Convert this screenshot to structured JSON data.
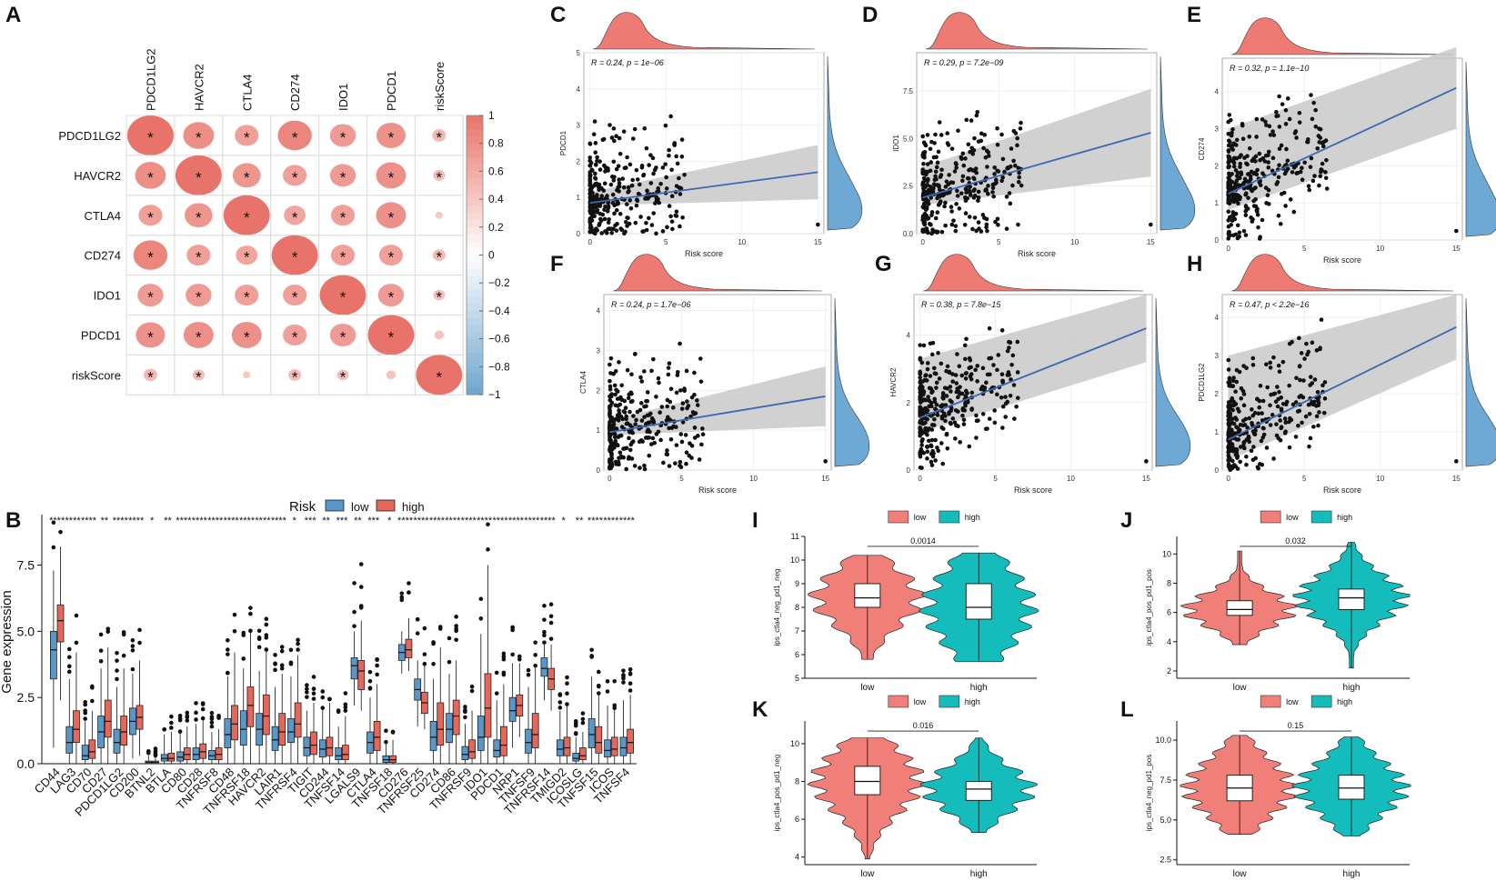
{
  "colors": {
    "pos": "#e8736a",
    "neg": "#6ea6cf",
    "low_box": "#5a97c9",
    "high_box": "#e4675a",
    "violin_low": "#f07e79",
    "violin_high": "#14bcbc",
    "density_top": "#ee7b73",
    "density_right": "#6ea8d4",
    "ci": "#c9c9c9",
    "line": "#3f67b3",
    "point": "#111111"
  },
  "panels": {
    "A": "A",
    "B": "B",
    "C": "C",
    "D": "D",
    "E": "E",
    "F": "F",
    "G": "G",
    "H": "H",
    "I": "I",
    "J": "J",
    "K": "K",
    "L": "L"
  },
  "chart_data": [
    {
      "id": "A",
      "type": "heatmap",
      "title": "",
      "rows": [
        "PDCD1LG2",
        "HAVCR2",
        "CTLA4",
        "CD274",
        "IDO1",
        "PDCD1",
        "riskScore"
      ],
      "columns": [
        "PDCD1LG2",
        "HAVCR2",
        "CTLA4",
        "CD274",
        "IDO1",
        "PDCD1",
        "riskScore"
      ],
      "values": [
        [
          1.0,
          0.62,
          0.45,
          0.7,
          0.5,
          0.58,
          0.2
        ],
        [
          0.62,
          1.0,
          0.55,
          0.45,
          0.5,
          0.6,
          0.16
        ],
        [
          0.45,
          0.55,
          1.0,
          0.4,
          0.45,
          0.6,
          0.05
        ],
        [
          0.7,
          0.45,
          0.4,
          1.0,
          0.45,
          0.45,
          0.18
        ],
        [
          0.5,
          0.5,
          0.45,
          0.45,
          1.0,
          0.5,
          0.15
        ],
        [
          0.58,
          0.6,
          0.6,
          0.45,
          0.5,
          1.0,
          0.1
        ],
        [
          0.2,
          0.16,
          0.05,
          0.18,
          0.15,
          0.1,
          1.0
        ]
      ],
      "stars": [
        [
          "*",
          "*",
          "*",
          "*",
          "*",
          "*",
          "*"
        ],
        [
          "*",
          "*",
          "*",
          "*",
          "*",
          "*",
          "*"
        ],
        [
          "*",
          "*",
          "*",
          "*",
          "*",
          "*",
          ""
        ],
        [
          "*",
          "*",
          "*",
          "*",
          "*",
          "*",
          "*"
        ],
        [
          "*",
          "*",
          "*",
          "*",
          "*",
          "*",
          "*"
        ],
        [
          "*",
          "*",
          "*",
          "*",
          "*",
          "*",
          ""
        ],
        [
          "*",
          "*",
          "",
          "*",
          "*",
          "",
          "*"
        ]
      ],
      "colorbar_ticks": [
        "1",
        "0.8",
        "0.6",
        "0.4",
        "0.2",
        "0",
        "−0.2",
        "−0.4",
        "−0.6",
        "−0.8",
        "−1"
      ]
    },
    {
      "id": "B",
      "type": "bar",
      "subtype": "boxplot",
      "ylabel": "Gene expression",
      "yticks": [
        "0.0",
        "2.5",
        "5.0",
        "7.5"
      ],
      "ylim": [
        0,
        9.2
      ],
      "legend_title": "Risk",
      "legend_labels": [
        "low",
        "high"
      ],
      "categories": [
        "CD44",
        "LAG3",
        "CD70",
        "CD27",
        "PDCD1LG2",
        "CD200",
        "BTNL2",
        "BTLA",
        "CD80",
        "CD28",
        "TNFRSF8",
        "CD48",
        "TNFRSF18",
        "HAVCR2",
        "LAIR1",
        "TNFRSF4",
        "TIGIT",
        "CD244",
        "TNFSF14",
        "LGALS9",
        "CTLA4",
        "TNFSF18",
        "CD276",
        "TNFRSF25",
        "CD274",
        "CD86",
        "TNFRSF9",
        "IDO1",
        "PDCD1",
        "NRP1",
        "TNFSF9",
        "TNFRSF14",
        "TMIGD2",
        "ICOSLG",
        "TNFSF15",
        "ICOS",
        "TNFSF4"
      ],
      "signif": [
        "****",
        "****",
        "****",
        "**",
        "****",
        "****",
        "*",
        "**",
        "****",
        "****",
        "****",
        "****",
        "****",
        "****",
        "****",
        "*",
        "***",
        "**",
        "***",
        "**",
        "***",
        "*",
        "****",
        "****",
        "****",
        "****",
        "****",
        "****",
        "****",
        "****",
        "****",
        "****",
        "*",
        "**",
        "****",
        "****",
        "****"
      ],
      "series": [
        {
          "name": "low",
          "medians": [
            4.3,
            0.8,
            0.3,
            1.2,
            0.8,
            1.6,
            0.05,
            0.2,
            0.25,
            0.35,
            0.3,
            1.1,
            1.3,
            1.3,
            0.9,
            1.2,
            0.6,
            0.55,
            0.3,
            3.7,
            0.8,
            0.15,
            4.2,
            2.8,
            1.0,
            1.3,
            0.35,
            1.0,
            0.5,
            2.0,
            0.8,
            3.6,
            0.55,
            0.2,
            1.1,
            0.5,
            0.6
          ],
          "q1": [
            3.2,
            0.4,
            0.15,
            0.6,
            0.4,
            1.1,
            0.0,
            0.1,
            0.1,
            0.15,
            0.15,
            0.6,
            0.7,
            0.7,
            0.5,
            0.8,
            0.3,
            0.25,
            0.15,
            3.2,
            0.4,
            0.05,
            3.9,
            2.4,
            0.5,
            0.8,
            0.15,
            0.5,
            0.25,
            1.6,
            0.4,
            3.3,
            0.3,
            0.1,
            0.6,
            0.25,
            0.3
          ],
          "q3": [
            5.0,
            1.4,
            0.7,
            1.8,
            1.3,
            2.1,
            0.1,
            0.35,
            0.45,
            0.6,
            0.5,
            1.7,
            2.0,
            1.9,
            1.4,
            1.7,
            1.0,
            0.9,
            0.6,
            4.0,
            1.2,
            0.3,
            4.5,
            3.2,
            1.6,
            1.9,
            0.65,
            1.8,
            0.9,
            2.5,
            1.3,
            4.0,
            0.9,
            0.4,
            1.7,
            0.9,
            1.0
          ],
          "min": [
            0.6,
            0.0,
            0.0,
            0.0,
            0.0,
            0.2,
            0.0,
            0.0,
            0.0,
            0.0,
            0.0,
            0.0,
            0.0,
            0.0,
            0.0,
            0.0,
            0.0,
            0.0,
            0.0,
            2.2,
            0.0,
            0.0,
            3.4,
            1.4,
            0.0,
            0.0,
            0.0,
            0.0,
            0.0,
            0.6,
            0.0,
            2.4,
            0.0,
            0.0,
            0.0,
            0.0,
            0.0
          ],
          "max": [
            7.3,
            3.2,
            1.6,
            3.6,
            2.9,
            3.4,
            0.3,
            1.1,
            1.2,
            1.5,
            1.2,
            3.3,
            3.6,
            3.5,
            2.9,
            3.3,
            2.0,
            2.1,
            1.4,
            5.0,
            2.5,
            0.8,
            5.0,
            3.9,
            3.2,
            3.4,
            1.5,
            4.9,
            2.4,
            3.8,
            2.9,
            4.5,
            2.0,
            1.0,
            3.3,
            2.2,
            2.4
          ]
        },
        {
          "name": "high",
          "medians": [
            5.4,
            1.3,
            0.45,
            1.6,
            1.2,
            1.75,
            0.05,
            0.2,
            0.35,
            0.45,
            0.35,
            1.5,
            2.2,
            1.8,
            1.2,
            1.5,
            0.7,
            0.6,
            0.35,
            3.5,
            1.0,
            0.15,
            4.3,
            2.3,
            1.3,
            1.8,
            0.45,
            2.1,
            0.7,
            2.2,
            1.1,
            3.2,
            0.6,
            0.3,
            0.8,
            0.55,
            0.8
          ],
          "q1": [
            4.6,
            0.8,
            0.2,
            1.0,
            0.7,
            1.3,
            0.0,
            0.1,
            0.15,
            0.2,
            0.15,
            0.9,
            1.4,
            1.1,
            0.7,
            1.0,
            0.35,
            0.3,
            0.15,
            2.8,
            0.5,
            0.05,
            4.0,
            1.9,
            0.7,
            1.1,
            0.2,
            1.0,
            0.3,
            1.8,
            0.6,
            2.8,
            0.3,
            0.15,
            0.4,
            0.3,
            0.4
          ],
          "q3": [
            6.0,
            2.0,
            0.9,
            2.4,
            1.8,
            2.2,
            0.1,
            0.4,
            0.6,
            0.75,
            0.6,
            2.2,
            2.9,
            2.6,
            1.9,
            2.3,
            1.2,
            1.0,
            0.7,
            3.9,
            1.6,
            0.3,
            4.7,
            2.7,
            2.3,
            2.4,
            0.9,
            3.4,
            1.4,
            2.6,
            1.9,
            3.6,
            1.0,
            0.6,
            1.4,
            1.0,
            1.3
          ],
          "min": [
            2.4,
            0.0,
            0.0,
            0.0,
            0.0,
            0.3,
            0.0,
            0.0,
            0.0,
            0.0,
            0.0,
            0.0,
            0.0,
            0.0,
            0.0,
            0.0,
            0.0,
            0.0,
            0.0,
            2.0,
            0.0,
            0.0,
            3.5,
            1.3,
            0.0,
            0.0,
            0.0,
            0.0,
            0.0,
            1.0,
            0.0,
            2.0,
            0.0,
            0.0,
            0.0,
            0.0,
            0.0
          ],
          "max": [
            8.2,
            4.2,
            2.0,
            4.4,
            3.6,
            3.9,
            0.3,
            1.2,
            1.4,
            1.7,
            1.3,
            4.2,
            5.0,
            4.3,
            3.4,
            4.1,
            2.3,
            2.3,
            1.8,
            5.4,
            3.0,
            0.9,
            5.5,
            3.7,
            4.4,
            3.9,
            2.0,
            7.5,
            3.0,
            3.8,
            3.6,
            4.5,
            2.2,
            1.2,
            2.6,
            2.1,
            2.6
          ]
        }
      ]
    },
    {
      "id": "C",
      "type": "scatter",
      "ylabel": "PDCD1",
      "xlabel": "Risk score",
      "annotation": "R = 0.24, p = 1e−06",
      "xticks": [
        "0",
        "5",
        "10",
        "15"
      ],
      "yticks": [
        "0",
        "1",
        "2",
        "3",
        "4",
        "5"
      ],
      "ylim": [
        0,
        5
      ],
      "xlim": [
        -0.4,
        15.4
      ],
      "fit": [
        0.85,
        1.7
      ],
      "ci_end": [
        1.15,
        2.45
      ]
    },
    {
      "id": "D",
      "type": "scatter",
      "ylabel": "IDO1",
      "xlabel": "Risk score",
      "annotation": "R = 0.29, p = 7.2e−09",
      "xticks": [
        "0",
        "5",
        "10",
        "15"
      ],
      "yticks": [
        "0.0",
        "2.5",
        "5.0",
        "7.5"
      ],
      "ylim": [
        0,
        9.5
      ],
      "xlim": [
        -0.4,
        15.4
      ],
      "fit": [
        1.9,
        5.3
      ],
      "ci_end": [
        3.5,
        7.6
      ]
    },
    {
      "id": "E",
      "type": "scatter",
      "ylabel": "CD274",
      "xlabel": "Risk score",
      "annotation": "R = 0.32, p = 1.1e−10",
      "xticks": [
        "0",
        "5",
        "10",
        "15"
      ],
      "yticks": [
        "0",
        "1",
        "2",
        "3",
        "4"
      ],
      "ylim": [
        0,
        4.9
      ],
      "xlim": [
        -0.4,
        15.4
      ],
      "fit": [
        1.25,
        4.1
      ],
      "ci_end": [
        3.0,
        5.2
      ]
    },
    {
      "id": "F",
      "type": "scatter",
      "ylabel": "CTLA4",
      "xlabel": "Risk score",
      "annotation": "R = 0.24, p = 1.7e−06",
      "xticks": [
        "0",
        "5",
        "10",
        "15"
      ],
      "yticks": [
        "0",
        "1",
        "2",
        "3",
        "4"
      ],
      "ylim": [
        0,
        4.4
      ],
      "xlim": [
        -0.4,
        15.4
      ],
      "fit": [
        0.95,
        1.85
      ],
      "ci_end": [
        1.25,
        2.6
      ]
    },
    {
      "id": "G",
      "type": "scatter",
      "ylabel": "HAVCR2",
      "xlabel": "Risk score",
      "annotation": "R = 0.38, p = 7.8e−15",
      "xticks": [
        "0",
        "5",
        "10",
        "15"
      ],
      "yticks": [
        "0",
        "2",
        "4"
      ],
      "ylim": [
        0,
        5.2
      ],
      "xlim": [
        -0.4,
        15.4
      ],
      "fit": [
        1.55,
        4.2
      ],
      "ci_end": [
        3.3,
        5.2
      ]
    },
    {
      "id": "H",
      "type": "scatter",
      "ylabel": "PDCD1LG2",
      "xlabel": "Risk score",
      "annotation": "R = 0.47, p < 2.2e−16",
      "xticks": [
        "0",
        "5",
        "10",
        "15"
      ],
      "yticks": [
        "0",
        "1",
        "2",
        "3",
        "4"
      ],
      "ylim": [
        0,
        4.6
      ],
      "xlim": [
        -0.4,
        15.4
      ],
      "fit": [
        0.8,
        3.75
      ],
      "ci_end": [
        3.0,
        4.6
      ]
    },
    {
      "id": "I",
      "type": "area",
      "subtype": "violin",
      "ylabel": "ips_ctla4_neg_pd1_neg",
      "categories": [
        "low",
        "high"
      ],
      "legend_labels": [
        "low",
        "high"
      ],
      "pvalue": "0.0014",
      "yticks": [
        "5",
        "6",
        "7",
        "8",
        "9",
        "10",
        "11"
      ],
      "ylim": [
        5,
        11
      ],
      "medians": [
        8.4,
        8.0
      ],
      "q1": [
        8.0,
        7.5
      ],
      "q3": [
        9.0,
        9.0
      ],
      "vmin": [
        5.8,
        5.7
      ],
      "vmax": [
        10.2,
        10.3
      ]
    },
    {
      "id": "J",
      "type": "area",
      "subtype": "violin",
      "ylabel": "ips_ctla4_pos_pd1_pos",
      "categories": [
        "low",
        "high"
      ],
      "legend_labels": [
        "low",
        "high"
      ],
      "pvalue": "0.032",
      "yticks": [
        "2",
        "4",
        "6",
        "8",
        "10"
      ],
      "ylim": [
        1.5,
        11.2
      ],
      "medians": [
        6.2,
        7.0
      ],
      "q1": [
        5.8,
        6.2
      ],
      "q3": [
        6.8,
        7.6
      ],
      "vmin": [
        3.8,
        2.2
      ],
      "vmax": [
        10.2,
        10.8
      ]
    },
    {
      "id": "K",
      "type": "area",
      "subtype": "violin",
      "ylabel": "ips_ctla4_pos_pd1_neg",
      "categories": [
        "low",
        "high"
      ],
      "legend_labels": [
        "low",
        "high"
      ],
      "pvalue": "0.016",
      "yticks": [
        "4",
        "6",
        "8",
        "10"
      ],
      "ylim": [
        3.6,
        11.2
      ],
      "medians": [
        8.0,
        7.6
      ],
      "q1": [
        7.3,
        7.0
      ],
      "q3": [
        8.8,
        8.0
      ],
      "vmin": [
        3.9,
        5.3
      ],
      "vmax": [
        10.3,
        10.3
      ]
    },
    {
      "id": "L",
      "type": "area",
      "subtype": "violin",
      "ylabel": "ips_ctla4_neg_pd1_pos",
      "categories": [
        "low",
        "high"
      ],
      "legend_labels": [
        "low",
        "high"
      ],
      "pvalue": "0.15",
      "yticks": [
        "2.5",
        "5.0",
        "7.5",
        "10.0"
      ],
      "ylim": [
        2.2,
        11.2
      ],
      "medians": [
        7.0,
        7.0
      ],
      "q1": [
        6.2,
        6.3
      ],
      "q3": [
        7.8,
        7.8
      ],
      "vmin": [
        4.1,
        4.0
      ],
      "vmax": [
        10.3,
        10.2
      ]
    }
  ]
}
